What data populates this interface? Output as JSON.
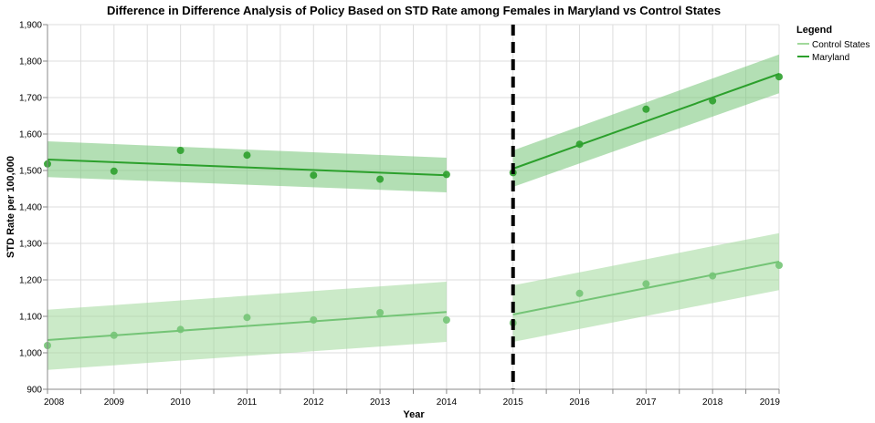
{
  "chart_data": {
    "type": "scatter",
    "title": "Difference in Difference Analysis of Policy Based on STD Rate among Females in Maryland vs Control States",
    "xlabel": "Year",
    "ylabel": "STD Rate per 100,000",
    "xlim": [
      2008,
      2019
    ],
    "ylim": [
      900,
      1900
    ],
    "x_ticks": [
      "2008",
      "2009",
      "2010",
      "2011",
      "2012",
      "2013",
      "2014",
      "2015",
      "2016",
      "2017",
      "2018",
      "2019"
    ],
    "y_ticks": [
      "900",
      "1,000",
      "1,100",
      "1,200",
      "1,300",
      "1,400",
      "1,500",
      "1,600",
      "1,700",
      "1,800",
      "1,900"
    ],
    "grid": true,
    "legend": {
      "title": "Legend",
      "placement": "top-right",
      "entries": [
        "Control States",
        "Maryland"
      ]
    },
    "policy_year": 2015,
    "series": [
      {
        "name": "Maryland",
        "color": "#2ca02c",
        "band_color": "#74c476",
        "points": [
          {
            "x": 2008,
            "y": 1518
          },
          {
            "x": 2009,
            "y": 1498
          },
          {
            "x": 2010,
            "y": 1555
          },
          {
            "x": 2011,
            "y": 1542
          },
          {
            "x": 2012,
            "y": 1487
          },
          {
            "x": 2013,
            "y": 1476
          },
          {
            "x": 2014,
            "y": 1489
          },
          {
            "x": 2015,
            "y": 1494
          },
          {
            "x": 2016,
            "y": 1572
          },
          {
            "x": 2017,
            "y": 1668
          },
          {
            "x": 2018,
            "y": 1691
          },
          {
            "x": 2019,
            "y": 1757
          }
        ],
        "fits": [
          {
            "x": [
              2008,
              2014
            ],
            "y": [
              1530,
              1487
            ],
            "lower": [
              1482,
              1440
            ],
            "upper": [
              1580,
              1535
            ]
          },
          {
            "x": [
              2015,
              2019
            ],
            "y": [
              1505,
              1765
            ],
            "lower": [
              1455,
              1712
            ],
            "upper": [
              1555,
              1818
            ]
          }
        ]
      },
      {
        "name": "Control States",
        "color": "#74c476",
        "band_color": "#a1d99b",
        "points": [
          {
            "x": 2008,
            "y": 1020
          },
          {
            "x": 2009,
            "y": 1048
          },
          {
            "x": 2010,
            "y": 1064
          },
          {
            "x": 2011,
            "y": 1097
          },
          {
            "x": 2012,
            "y": 1090
          },
          {
            "x": 2013,
            "y": 1110
          },
          {
            "x": 2014,
            "y": 1090
          },
          {
            "x": 2015,
            "y": 1082
          },
          {
            "x": 2016,
            "y": 1163
          },
          {
            "x": 2017,
            "y": 1189
          },
          {
            "x": 2018,
            "y": 1211
          },
          {
            "x": 2019,
            "y": 1240
          }
        ],
        "fits": [
          {
            "x": [
              2008,
              2014
            ],
            "y": [
              1035,
              1112
            ],
            "lower": [
              953,
              1030
            ],
            "upper": [
              1118,
              1195
            ]
          },
          {
            "x": [
              2015,
              2019
            ],
            "y": [
              1105,
              1250
            ],
            "lower": [
              1030,
              1172
            ],
            "upper": [
              1185,
              1328
            ]
          }
        ]
      }
    ]
  }
}
